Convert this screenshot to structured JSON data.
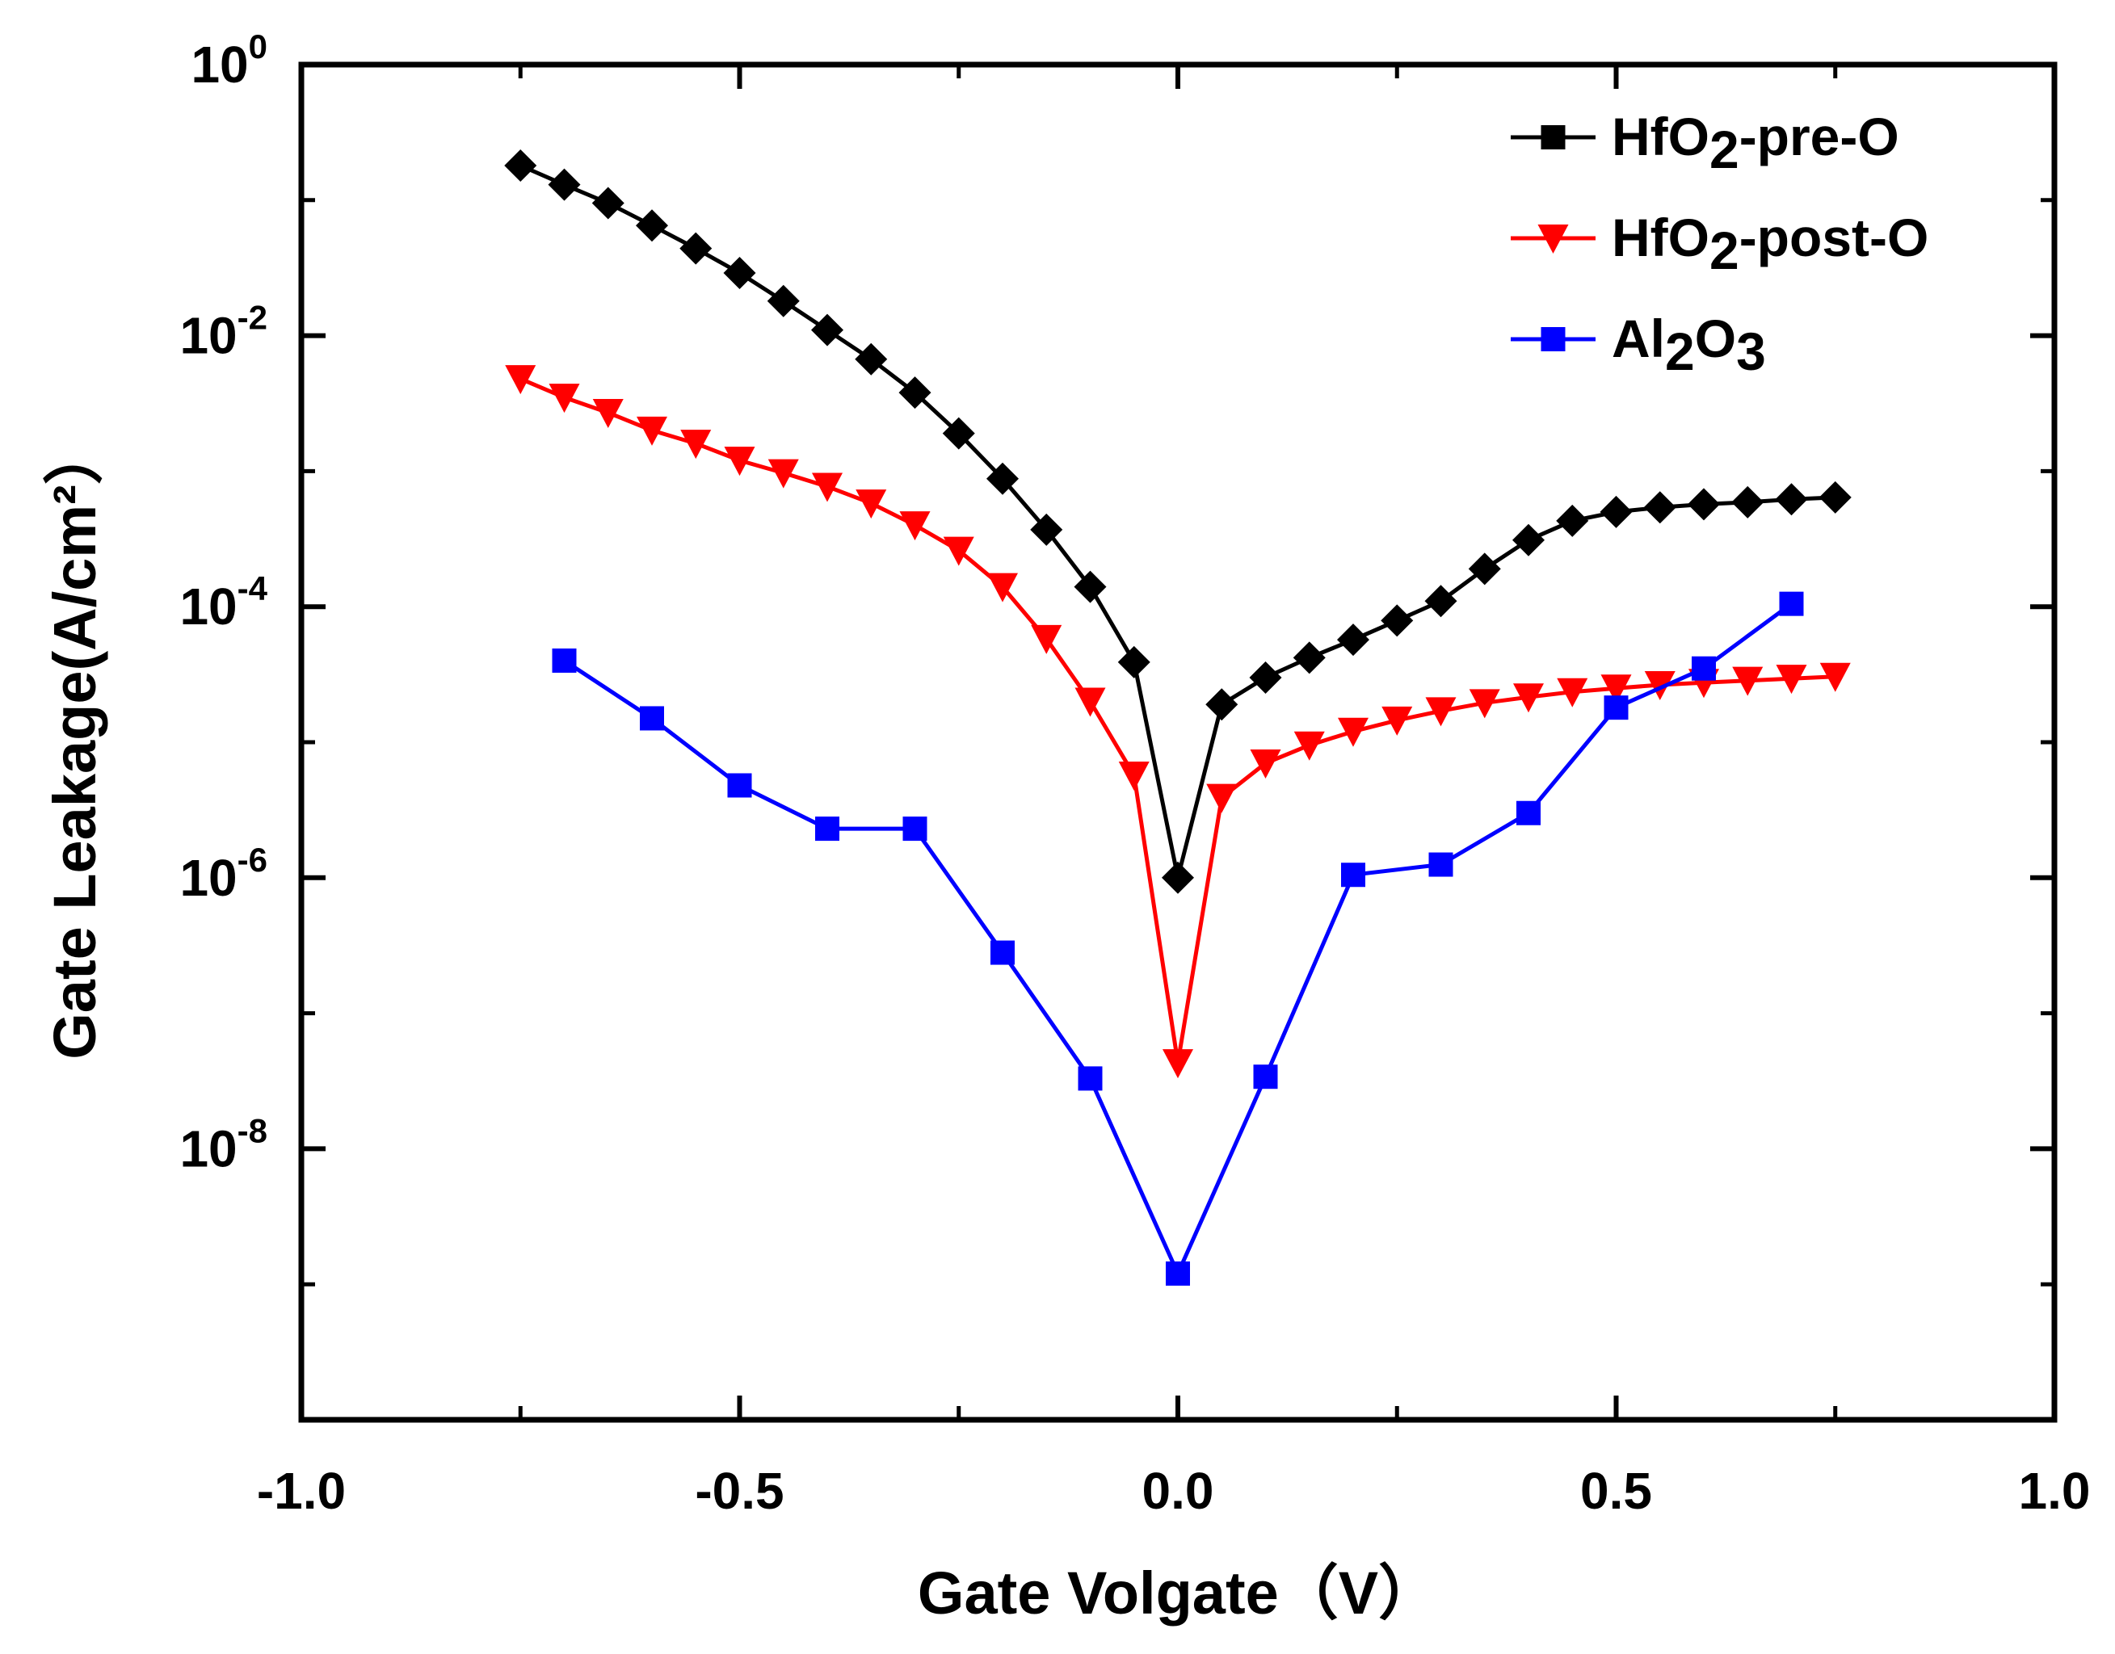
{
  "chart_data": {
    "type": "line",
    "title": "",
    "xlabel": "Gate Volgate（V）",
    "ylabel": "Gate Leakage(A/cm²）",
    "xlim": [
      -1.0,
      1.0
    ],
    "ylim": [
      1e-10,
      1
    ],
    "yscale": "log",
    "xticks": [
      -1.0,
      -0.5,
      0.0,
      0.5,
      1.0
    ],
    "xtick_labels": [
      "-1.0",
      "-0.5",
      "0.0",
      "0.5",
      "1.0"
    ],
    "yticks_major": [
      {
        "value": 1,
        "base": "10",
        "exp": "0"
      },
      {
        "value": 0.01,
        "base": "10",
        "exp": "-2"
      },
      {
        "value": 0.0001,
        "base": "10",
        "exp": "-4"
      },
      {
        "value": 1e-06,
        "base": "10",
        "exp": "-6"
      },
      {
        "value": 1e-08,
        "base": "10",
        "exp": "-8"
      }
    ],
    "legend_position": "top-right",
    "series": [
      {
        "name": "HfO2-pre-O",
        "label_main": "HfO",
        "label_sub": "2",
        "label_rest": "-pre-O",
        "color": "#000000",
        "marker": "diamond",
        "legend_marker": "square",
        "x": [
          -0.75,
          -0.7,
          -0.65,
          -0.6,
          -0.55,
          -0.5,
          -0.45,
          -0.4,
          -0.35,
          -0.3,
          -0.25,
          -0.2,
          -0.15,
          -0.1,
          -0.05,
          0.0,
          0.05,
          0.1,
          0.15,
          0.2,
          0.25,
          0.3,
          0.35,
          0.4,
          0.45,
          0.5,
          0.55,
          0.6,
          0.65,
          0.7,
          0.75
        ],
        "y": [
          0.18,
          0.13,
          0.095,
          0.065,
          0.044,
          0.029,
          0.018,
          0.011,
          0.0067,
          0.0038,
          0.0019,
          0.00088,
          0.00037,
          0.00014,
          3.9e-05,
          1e-06,
          1.9e-05,
          3e-05,
          4.2e-05,
          5.7e-05,
          7.9e-05,
          0.00011,
          0.00019,
          0.00031,
          0.00043,
          0.0005,
          0.00054,
          0.00057,
          0.00059,
          0.00062,
          0.00064
        ]
      },
      {
        "name": "HfO2-post-O",
        "label_main": "HfO",
        "label_sub": "2",
        "label_rest": "-post-O",
        "color": "#ff0000",
        "marker": "triangle-down",
        "legend_marker": "triangle-down",
        "x": [
          -0.75,
          -0.7,
          -0.65,
          -0.6,
          -0.55,
          -0.5,
          -0.45,
          -0.4,
          -0.35,
          -0.3,
          -0.25,
          -0.2,
          -0.15,
          -0.1,
          -0.05,
          0.0,
          0.05,
          0.1,
          0.15,
          0.2,
          0.25,
          0.3,
          0.35,
          0.4,
          0.45,
          0.5,
          0.55,
          0.6,
          0.65,
          0.7,
          0.75
        ],
        "y": [
          0.0048,
          0.0035,
          0.0027,
          0.002,
          0.0016,
          0.0012,
          0.00097,
          0.00077,
          0.00058,
          0.0004,
          0.00026,
          0.00014,
          5.8e-05,
          2e-05,
          5.7e-06,
          4.3e-08,
          3.9e-06,
          7e-06,
          9.5e-06,
          1.2e-05,
          1.45e-05,
          1.7e-05,
          1.95e-05,
          2.15e-05,
          2.35e-05,
          2.5e-05,
          2.65e-05,
          2.75e-05,
          2.85e-05,
          2.95e-05,
          3.05e-05
        ]
      },
      {
        "name": "Al2O3",
        "label_main": "Al",
        "label_sub": "2",
        "label_rest": "O",
        "label_sub2": "3",
        "color": "#0000ff",
        "marker": "square",
        "legend_marker": "square",
        "x": [
          -0.7,
          -0.6,
          -0.5,
          -0.4,
          -0.3,
          -0.2,
          -0.1,
          0.0,
          0.1,
          0.2,
          0.3,
          0.4,
          0.5,
          0.6,
          0.7
        ],
        "y": [
          4e-05,
          1.5e-05,
          4.8e-06,
          2.3e-06,
          2.3e-06,
          2.8e-07,
          3.3e-08,
          1.2e-09,
          3.4e-08,
          1.05e-06,
          1.25e-06,
          3e-06,
          1.8e-05,
          3.5e-05,
          0.000105
        ]
      }
    ]
  }
}
